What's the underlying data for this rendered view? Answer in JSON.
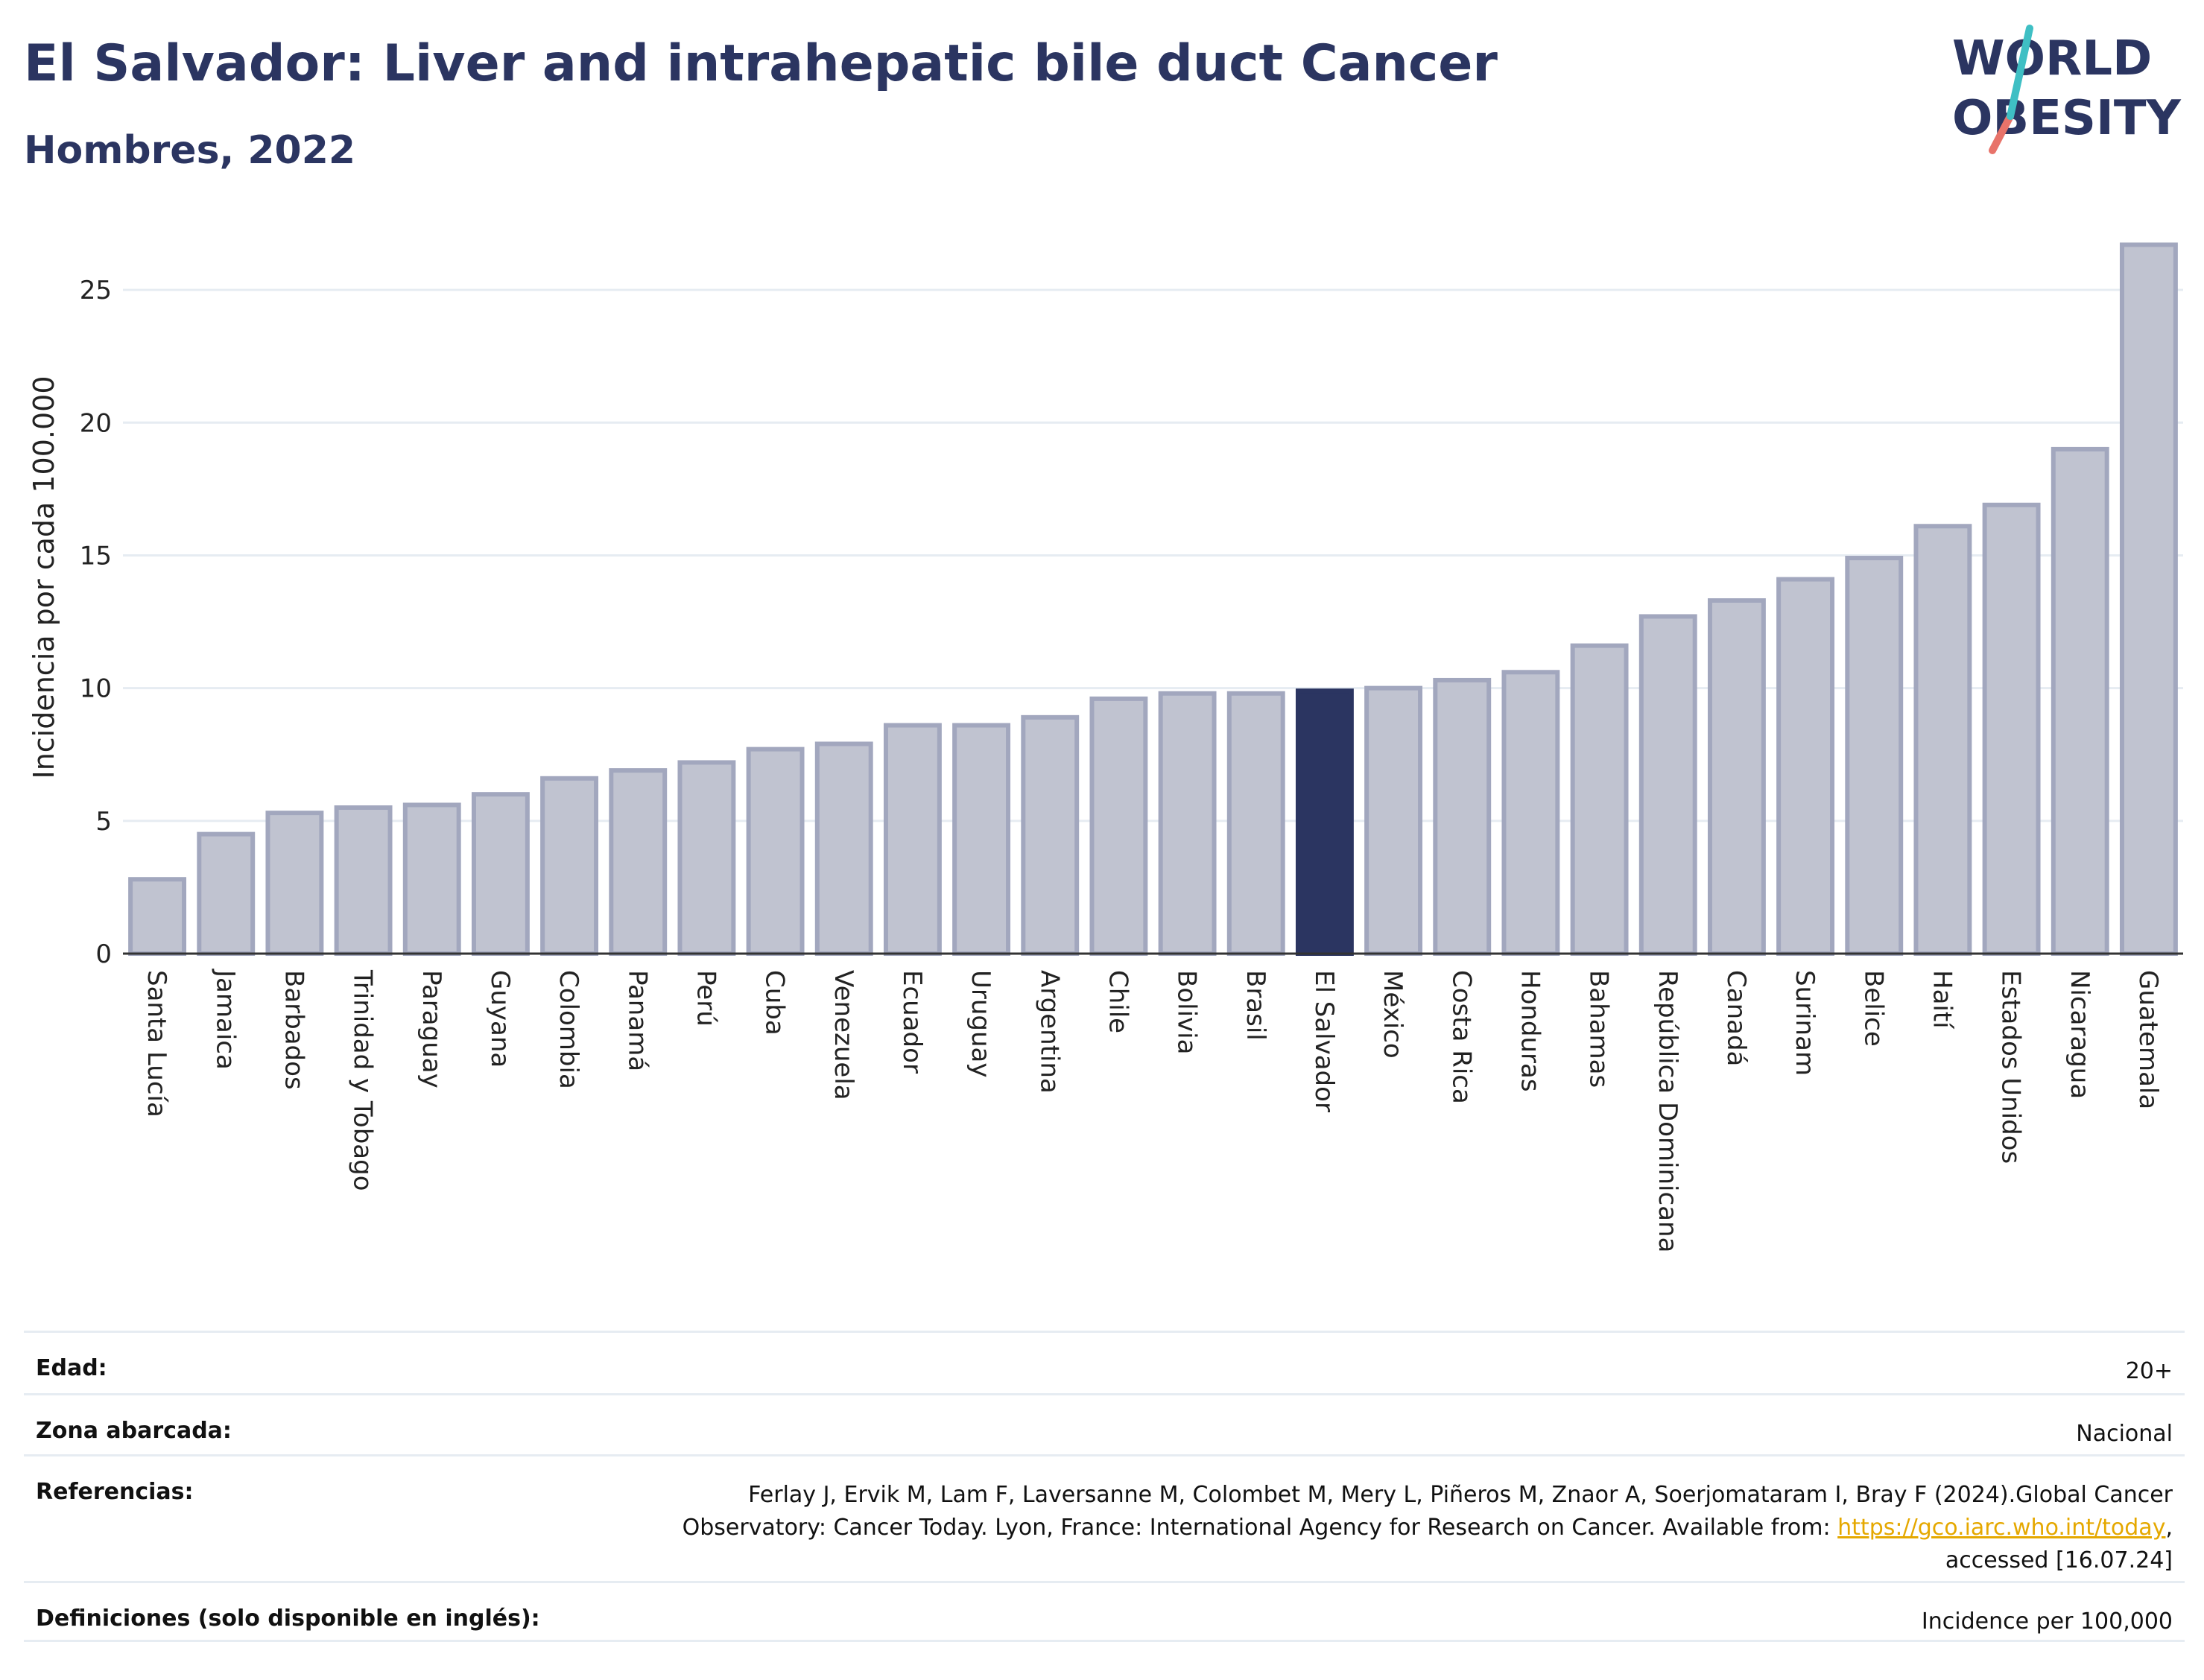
{
  "title": "El Salvador: Liver and intrahepatic bile duct Cancer",
  "subtitle": "Hombres, 2022",
  "logo": {
    "line1": "WORLD",
    "line2": "OBESITY"
  },
  "colors": {
    "highlight": "#2b3561",
    "bar": "#c0c3d0",
    "bar_edge": "#a2a7be",
    "text": "#2b3561"
  },
  "chart_data": {
    "type": "bar",
    "ylabel": "Incidencia por cada 100.000",
    "ylim": [
      0,
      27.5
    ],
    "yticks": [
      0,
      5,
      10,
      15,
      20,
      25
    ],
    "grid": true,
    "highlight": "El Salvador",
    "categories": [
      "Santa Lucía",
      "Jamaica",
      "Barbados",
      "Trinidad y Tobago",
      "Paraguay",
      "Guyana",
      "Colombia",
      "Panamá",
      "Perú",
      "Cuba",
      "Venezuela",
      "Ecuador",
      "Uruguay",
      "Argentina",
      "Chile",
      "Bolivia",
      "Brasil",
      "El Salvador",
      "México",
      "Costa Rica",
      "Honduras",
      "Bahamas",
      "República Dominicana",
      "Canadá",
      "Surinam",
      "Belice",
      "Haití",
      "Estados Unidos",
      "Nicaragua",
      "Guatemala"
    ],
    "values": [
      2.8,
      4.5,
      5.3,
      5.5,
      5.6,
      6.0,
      6.6,
      6.9,
      7.2,
      7.7,
      7.9,
      8.6,
      8.6,
      8.9,
      9.6,
      9.8,
      9.8,
      9.9,
      10.0,
      10.3,
      10.6,
      11.6,
      12.7,
      13.3,
      14.1,
      14.9,
      16.1,
      16.9,
      19.0,
      26.7
    ]
  },
  "info": [
    {
      "label": "Edad:",
      "value": "20+"
    },
    {
      "label": "Zona abarcada:",
      "value": "Nacional"
    },
    {
      "label": "Referencias:",
      "value_line1": "Ferlay J, Ervik M, Lam F, Laversanne M, Colombet M, Mery L, Piñeros M, Znaor A, Soerjomataram I, Bray F (2024).Global Cancer",
      "value_line2": "Observatory: Cancer Today. Lyon, France: International Agency for Research on Cancer. Available from: ",
      "link": "https://gco.iarc.who.int/today",
      "value_line2_end": ",",
      "value_line3": "accessed [16.07.24]"
    },
    {
      "label": "Definiciones (solo disponible en inglés):",
      "value": "Incidence per 100,000"
    }
  ]
}
